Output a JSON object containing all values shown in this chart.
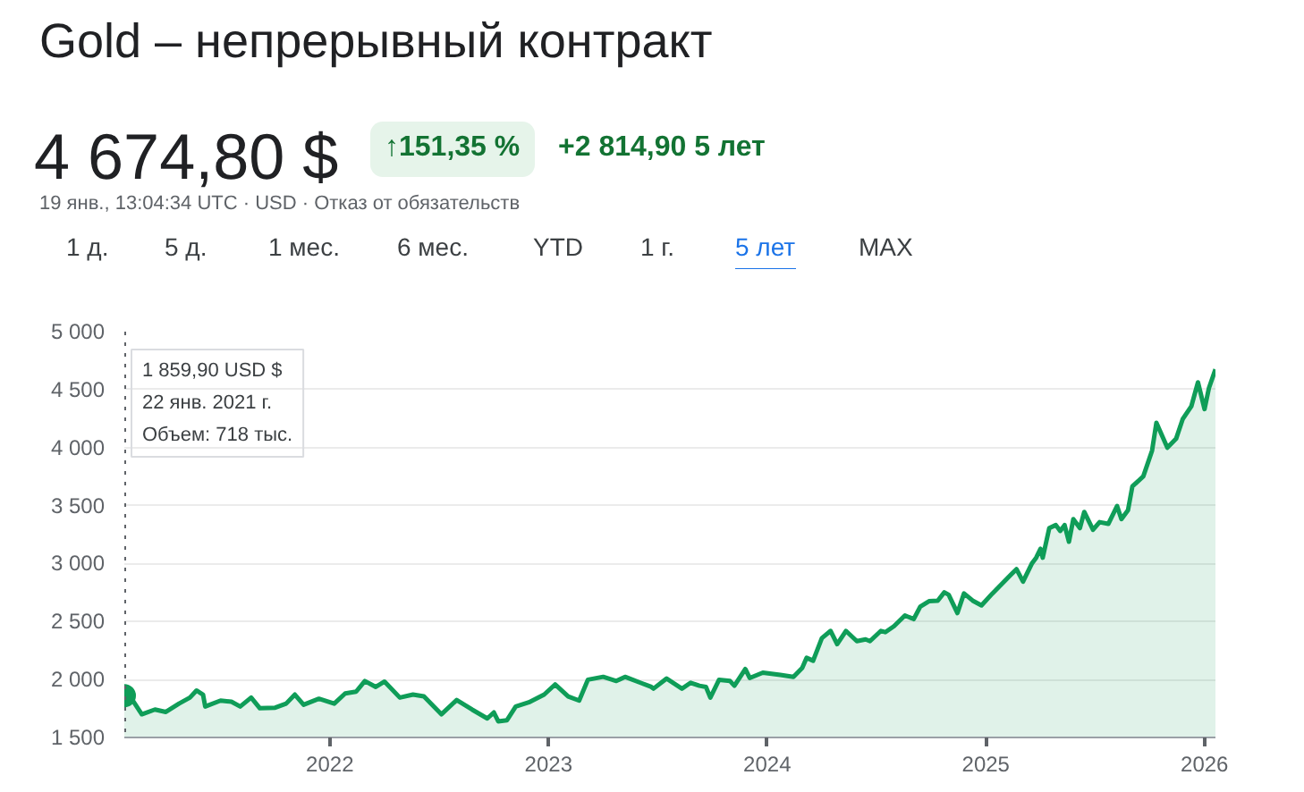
{
  "chart_data": {
    "type": "area",
    "title": "Gold – непрерывный контракт",
    "subtitle": "4 674,80 $",
    "annotations": [
      "↑151,35 %",
      "+2 814,90 5 лет",
      "19 янв., 13:04:34 UTC · USD · Отказ от обязательств",
      "1 д.",
      "5 д.",
      "1 мес.",
      "6 мес.",
      "YTD",
      "1 г.",
      "5 лет",
      "MAX",
      "1 859,90 USD $\n22 янв. 2021 г.\nОбъем: 718 тыс."
    ],
    "x": [
      2021.06,
      2021.09,
      2021.14,
      2021.2,
      2021.25,
      2021.31,
      2021.36,
      2021.39,
      2021.42,
      2021.43,
      2021.5,
      2021.55,
      2021.59,
      2021.64,
      2021.68,
      2021.75,
      2021.8,
      2021.84,
      2021.88,
      2021.95,
      2022.02,
      2022.07,
      2022.12,
      2022.16,
      2022.21,
      2022.25,
      2022.32,
      2022.38,
      2022.43,
      2022.51,
      2022.58,
      2022.65,
      2022.72,
      2022.75,
      2022.77,
      2022.81,
      2022.85,
      2022.91,
      2022.98,
      2023.03,
      2023.09,
      2023.14,
      2023.18,
      2023.25,
      2023.31,
      2023.35,
      2023.42,
      2023.47,
      2023.48,
      2023.54,
      2023.61,
      2023.65,
      2023.69,
      2023.72,
      2023.74,
      2023.78,
      2023.83,
      2023.85,
      2023.9,
      2023.92,
      2023.98,
      2024.06,
      2024.12,
      2024.16,
      2024.18,
      2024.21,
      2024.25,
      2024.29,
      2024.32,
      2024.36,
      2024.41,
      2024.45,
      2024.47,
      2024.52,
      2024.54,
      2024.58,
      2024.63,
      2024.67,
      2024.7,
      2024.74,
      2024.78,
      2024.81,
      2024.83,
      2024.87,
      2024.9,
      2024.94,
      2024.98,
      2025.03,
      2025.07,
      2025.11,
      2025.14,
      2025.17,
      2025.21,
      2025.23,
      2025.25,
      2025.26,
      2025.29,
      2025.32,
      2025.34,
      2025.36,
      2025.38,
      2025.4,
      2025.43,
      2025.45,
      2025.49,
      2025.52,
      2025.56,
      2025.6,
      2025.62,
      2025.65,
      2025.67,
      2025.72,
      2025.76,
      2025.78,
      2025.83,
      2025.87,
      2025.9,
      2025.94,
      2025.97,
      2026.0,
      2026.02,
      2026.05
    ],
    "series": [
      {
        "color": "#0f9d58",
        "values": [
          1859.9,
          1844,
          1700,
          1741,
          1720,
          1792,
          1844,
          1905,
          1870,
          1767,
          1818,
          1808,
          1767,
          1844,
          1752,
          1757,
          1792,
          1870,
          1782,
          1834,
          1792,
          1880,
          1895,
          1987,
          1936,
          1982,
          1844,
          1870,
          1854,
          1700,
          1823,
          1741,
          1664,
          1716,
          1639,
          1649,
          1767,
          1803,
          1870,
          1957,
          1854,
          1818,
          1998,
          2023,
          1987,
          2023,
          1972,
          1936,
          1921,
          2008,
          1921,
          1972,
          1946,
          1936,
          1844,
          1998,
          1987,
          1946,
          2090,
          2013,
          2059,
          2039,
          2023,
          2100,
          2187,
          2162,
          2357,
          2419,
          2305,
          2419,
          2331,
          2346,
          2331,
          2419,
          2408,
          2460,
          2552,
          2521,
          2629,
          2675,
          2680,
          2752,
          2731,
          2573,
          2742,
          2680,
          2639,
          2742,
          2819,
          2896,
          2952,
          2844,
          2999,
          3050,
          3127,
          3050,
          3306,
          3332,
          3281,
          3332,
          3188,
          3383,
          3306,
          3445,
          3291,
          3357,
          3342,
          3496,
          3383,
          3460,
          3665,
          3752,
          3973,
          4214,
          3999,
          4076,
          4245,
          4358,
          4563,
          4332,
          4512,
          4674.8
        ]
      }
    ],
    "xlim": [
      2021.06,
      2026.05
    ],
    "xticks": [
      2022,
      2023,
      2024,
      2025,
      2026
    ],
    "ylim": [
      1500,
      5000
    ],
    "yticks": [
      {
        "value": 1500,
        "label": "1 500"
      },
      {
        "value": 2000,
        "label": "2 000"
      },
      {
        "value": 2500,
        "label": "2 500"
      },
      {
        "value": 3000,
        "label": "3 000"
      },
      {
        "value": 3500,
        "label": "3 500"
      },
      {
        "value": 4000,
        "label": "4 000"
      },
      {
        "value": 4500,
        "label": "4 500"
      },
      {
        "value": 5000,
        "label": "5 000"
      }
    ],
    "ref_lines": [
      {
        "axis": "x",
        "value": 2021.06,
        "label": null,
        "color": "#5f6368",
        "line_style": "dotted"
      }
    ],
    "grid": "y",
    "marker": "none",
    "line_style": "solid"
  }
}
